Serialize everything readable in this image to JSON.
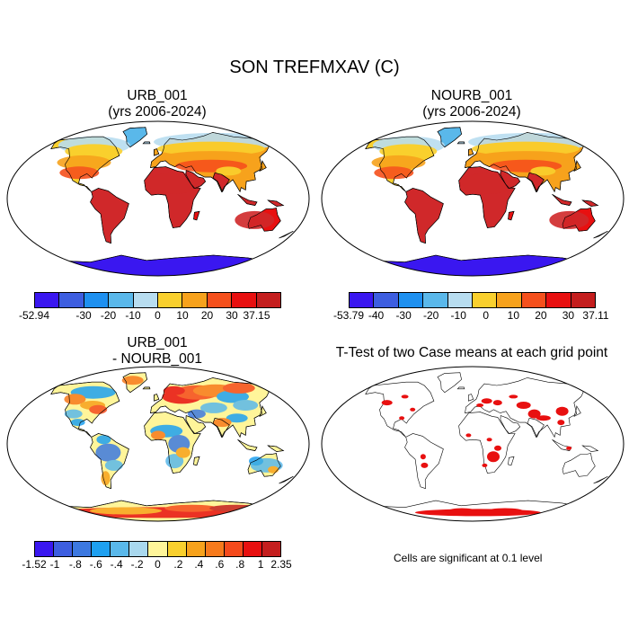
{
  "title": "SON TREFMXAV (C)",
  "panels": [
    {
      "id": "urb",
      "title_line1": "URB_001",
      "title_line2": "(yrs 2006-2024)"
    },
    {
      "id": "nourb",
      "title_line1": "NOURB_001",
      "title_line2": "(yrs 2006-2024)"
    },
    {
      "id": "diff",
      "title_line1": "URB_001",
      "title_line2": "- NOURB_001"
    },
    {
      "id": "ttest",
      "title_line1": "T-Test of two Case means at each grid point",
      "title_line2": ""
    }
  ],
  "colorbars": {
    "urb": {
      "colors": [
        "#3a17f0",
        "#3d5ee0",
        "#1e90f0",
        "#5ab8ea",
        "#b8ddf0",
        "#f9d02e",
        "#f7a21c",
        "#f5501c",
        "#e81010",
        "#c41e1e"
      ],
      "labels": [
        "-52.94",
        "-30",
        "-20",
        "-10",
        "0",
        "10",
        "20",
        "30",
        "37.15"
      ]
    },
    "nourb": {
      "colors": [
        "#3a17f0",
        "#3d5ee0",
        "#1e90f0",
        "#5ab8ea",
        "#b8ddf0",
        "#f9d02e",
        "#f7a21c",
        "#f5501c",
        "#e81010",
        "#c41e1e"
      ],
      "labels": [
        "-53.79",
        "-40",
        "-30",
        "-20",
        "-10",
        "0",
        "10",
        "20",
        "30",
        "37.11"
      ]
    },
    "diff": {
      "colors": [
        "#3a17f0",
        "#3d5ee0",
        "#3c78e0",
        "#1ea0f0",
        "#5ab8ea",
        "#a9d8ee",
        "#fff59a",
        "#f9d02e",
        "#f7a21c",
        "#f77a1c",
        "#f54a1c",
        "#e81010",
        "#c41e1e"
      ],
      "labels": [
        "-1.52",
        "-1",
        "-.8",
        "-.6",
        "-.4",
        "-.2",
        "0",
        ".2",
        ".4",
        ".6",
        ".8",
        "1",
        "2.35"
      ]
    }
  },
  "note": "Cells are significant at 0.1 level",
  "map_colors": {
    "ocean": "#ffffff",
    "outline": "#000000",
    "tropical": "#d0282a",
    "hot": "#e81010",
    "warm": "#f5501c",
    "mild": "#f7a21c",
    "cool": "#f9d02e",
    "cold": "#b8ddf0",
    "frigid": "#5ab8ea",
    "antarctic": "#3a17f0",
    "significant": "#e81010"
  }
}
